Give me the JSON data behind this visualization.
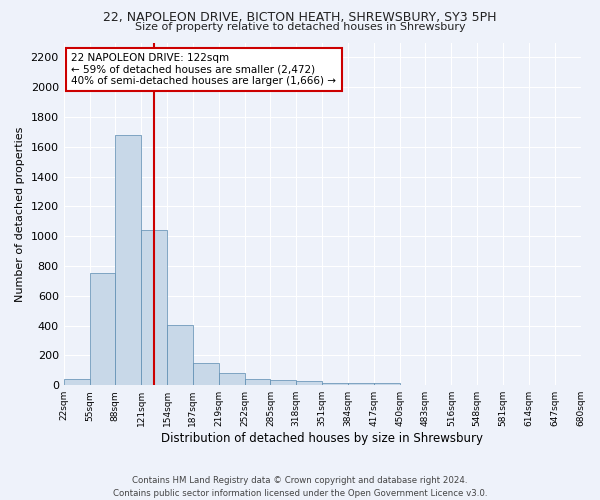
{
  "title1": "22, NAPOLEON DRIVE, BICTON HEATH, SHREWSBURY, SY3 5PH",
  "title2": "Size of property relative to detached houses in Shrewsbury",
  "xlabel": "Distribution of detached houses by size in Shrewsbury",
  "ylabel": "Number of detached properties",
  "bar_values": [
    45,
    750,
    1680,
    1040,
    405,
    150,
    80,
    45,
    35,
    30,
    18,
    15,
    15,
    0,
    0,
    0,
    0,
    0,
    0,
    0
  ],
  "bin_labels": [
    "22sqm",
    "55sqm",
    "88sqm",
    "121sqm",
    "154sqm",
    "187sqm",
    "219sqm",
    "252sqm",
    "285sqm",
    "318sqm",
    "351sqm",
    "384sqm",
    "417sqm",
    "450sqm",
    "483sqm",
    "516sqm",
    "548sqm",
    "581sqm",
    "614sqm",
    "647sqm",
    "680sqm"
  ],
  "bar_color": "#c8d8e8",
  "bar_edge_color": "#5a8ab0",
  "background_color": "#eef2fa",
  "grid_color": "#ffffff",
  "annotation_text": "22 NAPOLEON DRIVE: 122sqm\n← 59% of detached houses are smaller (2,472)\n40% of semi-detached houses are larger (1,666) →",
  "annotation_box_color": "#ffffff",
  "annotation_box_edge": "#cc0000",
  "red_line_color": "#cc0000",
  "ylim": [
    0,
    2300
  ],
  "yticks": [
    0,
    200,
    400,
    600,
    800,
    1000,
    1200,
    1400,
    1600,
    1800,
    2000,
    2200
  ],
  "footer": "Contains HM Land Registry data © Crown copyright and database right 2024.\nContains public sector information licensed under the Open Government Licence v3.0.",
  "red_line_x": 3.5
}
